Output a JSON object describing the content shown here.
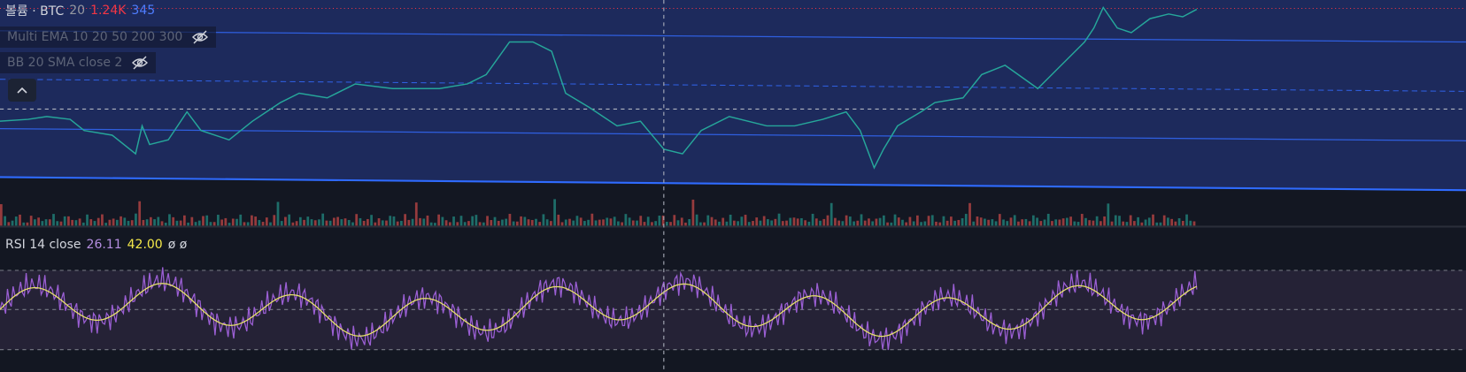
{
  "volume_legend": {
    "label": "볼륨 · BTC",
    "period": "20",
    "value": "1.24K",
    "ma": "345"
  },
  "indicators": [
    "Multi EMA 10 20 50 200 300",
    "BB 20 SMA close 2"
  ],
  "rsi_legend": {
    "label": "RSI 14 close",
    "value": "26.11",
    "ma": "42.00",
    "extra": "ø ø"
  }
}
